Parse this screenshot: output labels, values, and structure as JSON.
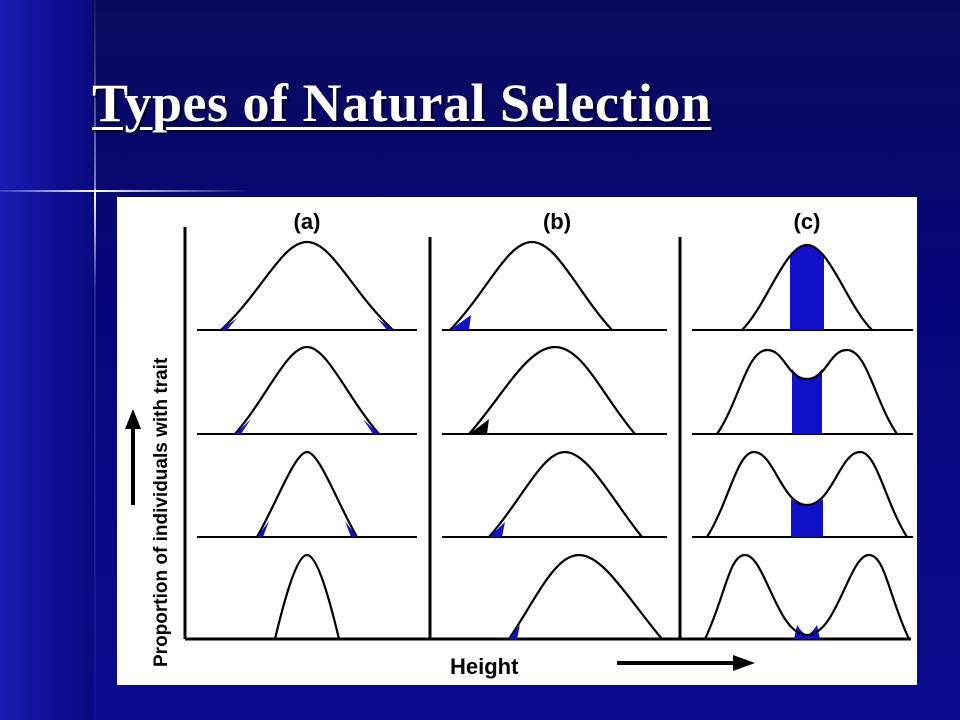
{
  "slide": {
    "title": "Types of Natural Selection"
  },
  "figure": {
    "panel_labels": [
      "(a)",
      "(b)",
      "(c)"
    ],
    "y_axis_label": "Proportion of individuals with trait",
    "x_axis_label": "Height",
    "colors": {
      "curve": "#000000",
      "selection_fill": "#1010c8",
      "highlight_fill_b": "#000000"
    },
    "icons": [
      "arrow-up-icon",
      "arrow-right-icon"
    ]
  }
}
